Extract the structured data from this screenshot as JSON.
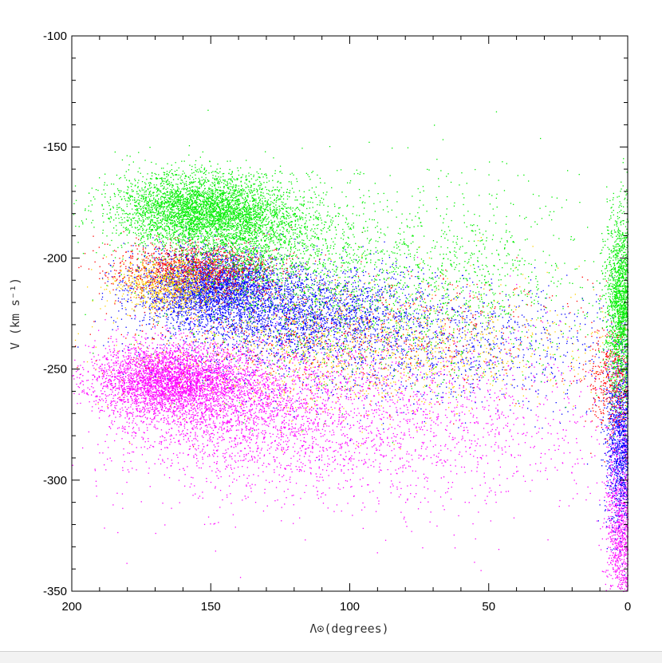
{
  "chart_data": {
    "type": "scatter",
    "xlabel": "Λ⊙(degrees)",
    "ylabel": "V (km s⁻¹)",
    "xlim": [
      200,
      0
    ],
    "ylim": [
      -350,
      -100
    ],
    "x_axis_reversed": true,
    "x_ticks": [
      200,
      150,
      100,
      50,
      0
    ],
    "y_ticks": [
      -100,
      -150,
      -200,
      -250,
      -300,
      -350
    ],
    "x_tick_labels": [
      "200",
      "150",
      "100",
      "50",
      "0"
    ],
    "y_tick_labels": [
      "-100",
      "-150",
      "-200",
      "-250",
      "-300",
      "-350"
    ],
    "grid": false,
    "series": [
      {
        "color": "#ff00ff",
        "points_estimated": 9000,
        "clumps": [
          {
            "x": 165,
            "y": -255,
            "sx": 14,
            "sy": 8,
            "weight": 3500
          },
          {
            "x": 140,
            "y": -265,
            "sx": 22,
            "sy": 15,
            "weight": 2000
          },
          {
            "x": 95,
            "y": -275,
            "sx": 45,
            "sy": 20,
            "weight": 2000
          },
          {
            "x": 2,
            "y": -320,
            "sx": 3,
            "sy": 25,
            "weight": 1500
          }
        ]
      },
      {
        "color": "#0000ff",
        "points_estimated": 8000,
        "clumps": [
          {
            "x": 150,
            "y": -212,
            "sx": 13,
            "sy": 8,
            "weight": 3000
          },
          {
            "x": 120,
            "y": -225,
            "sx": 25,
            "sy": 10,
            "weight": 2500
          },
          {
            "x": 70,
            "y": -240,
            "sx": 40,
            "sy": 14,
            "weight": 1200
          },
          {
            "x": 2,
            "y": -280,
            "sx": 3,
            "sy": 20,
            "weight": 1300
          }
        ]
      },
      {
        "color": "#ff0000",
        "points_estimated": 2500,
        "clumps": [
          {
            "x": 155,
            "y": -205,
            "sx": 15,
            "sy": 6,
            "weight": 1200
          },
          {
            "x": 100,
            "y": -235,
            "sx": 40,
            "sy": 15,
            "weight": 800
          },
          {
            "x": 5,
            "y": -255,
            "sx": 5,
            "sy": 12,
            "weight": 500
          }
        ]
      },
      {
        "color": "#ffd000",
        "points_estimated": 2000,
        "clumps": [
          {
            "x": 165,
            "y": -212,
            "sx": 10,
            "sy": 6,
            "weight": 800
          },
          {
            "x": 90,
            "y": -240,
            "sx": 40,
            "sy": 15,
            "weight": 1200
          }
        ]
      },
      {
        "color": "#00ee00",
        "points_estimated": 9000,
        "clumps": [
          {
            "x": 155,
            "y": -178,
            "sx": 15,
            "sy": 8,
            "weight": 3500
          },
          {
            "x": 135,
            "y": -190,
            "sx": 15,
            "sy": 12,
            "weight": 1500
          },
          {
            "x": 90,
            "y": -210,
            "sx": 40,
            "sy": 22,
            "weight": 2000
          },
          {
            "x": 2,
            "y": -220,
            "sx": 3,
            "sy": 20,
            "weight": 2000
          }
        ]
      }
    ]
  }
}
